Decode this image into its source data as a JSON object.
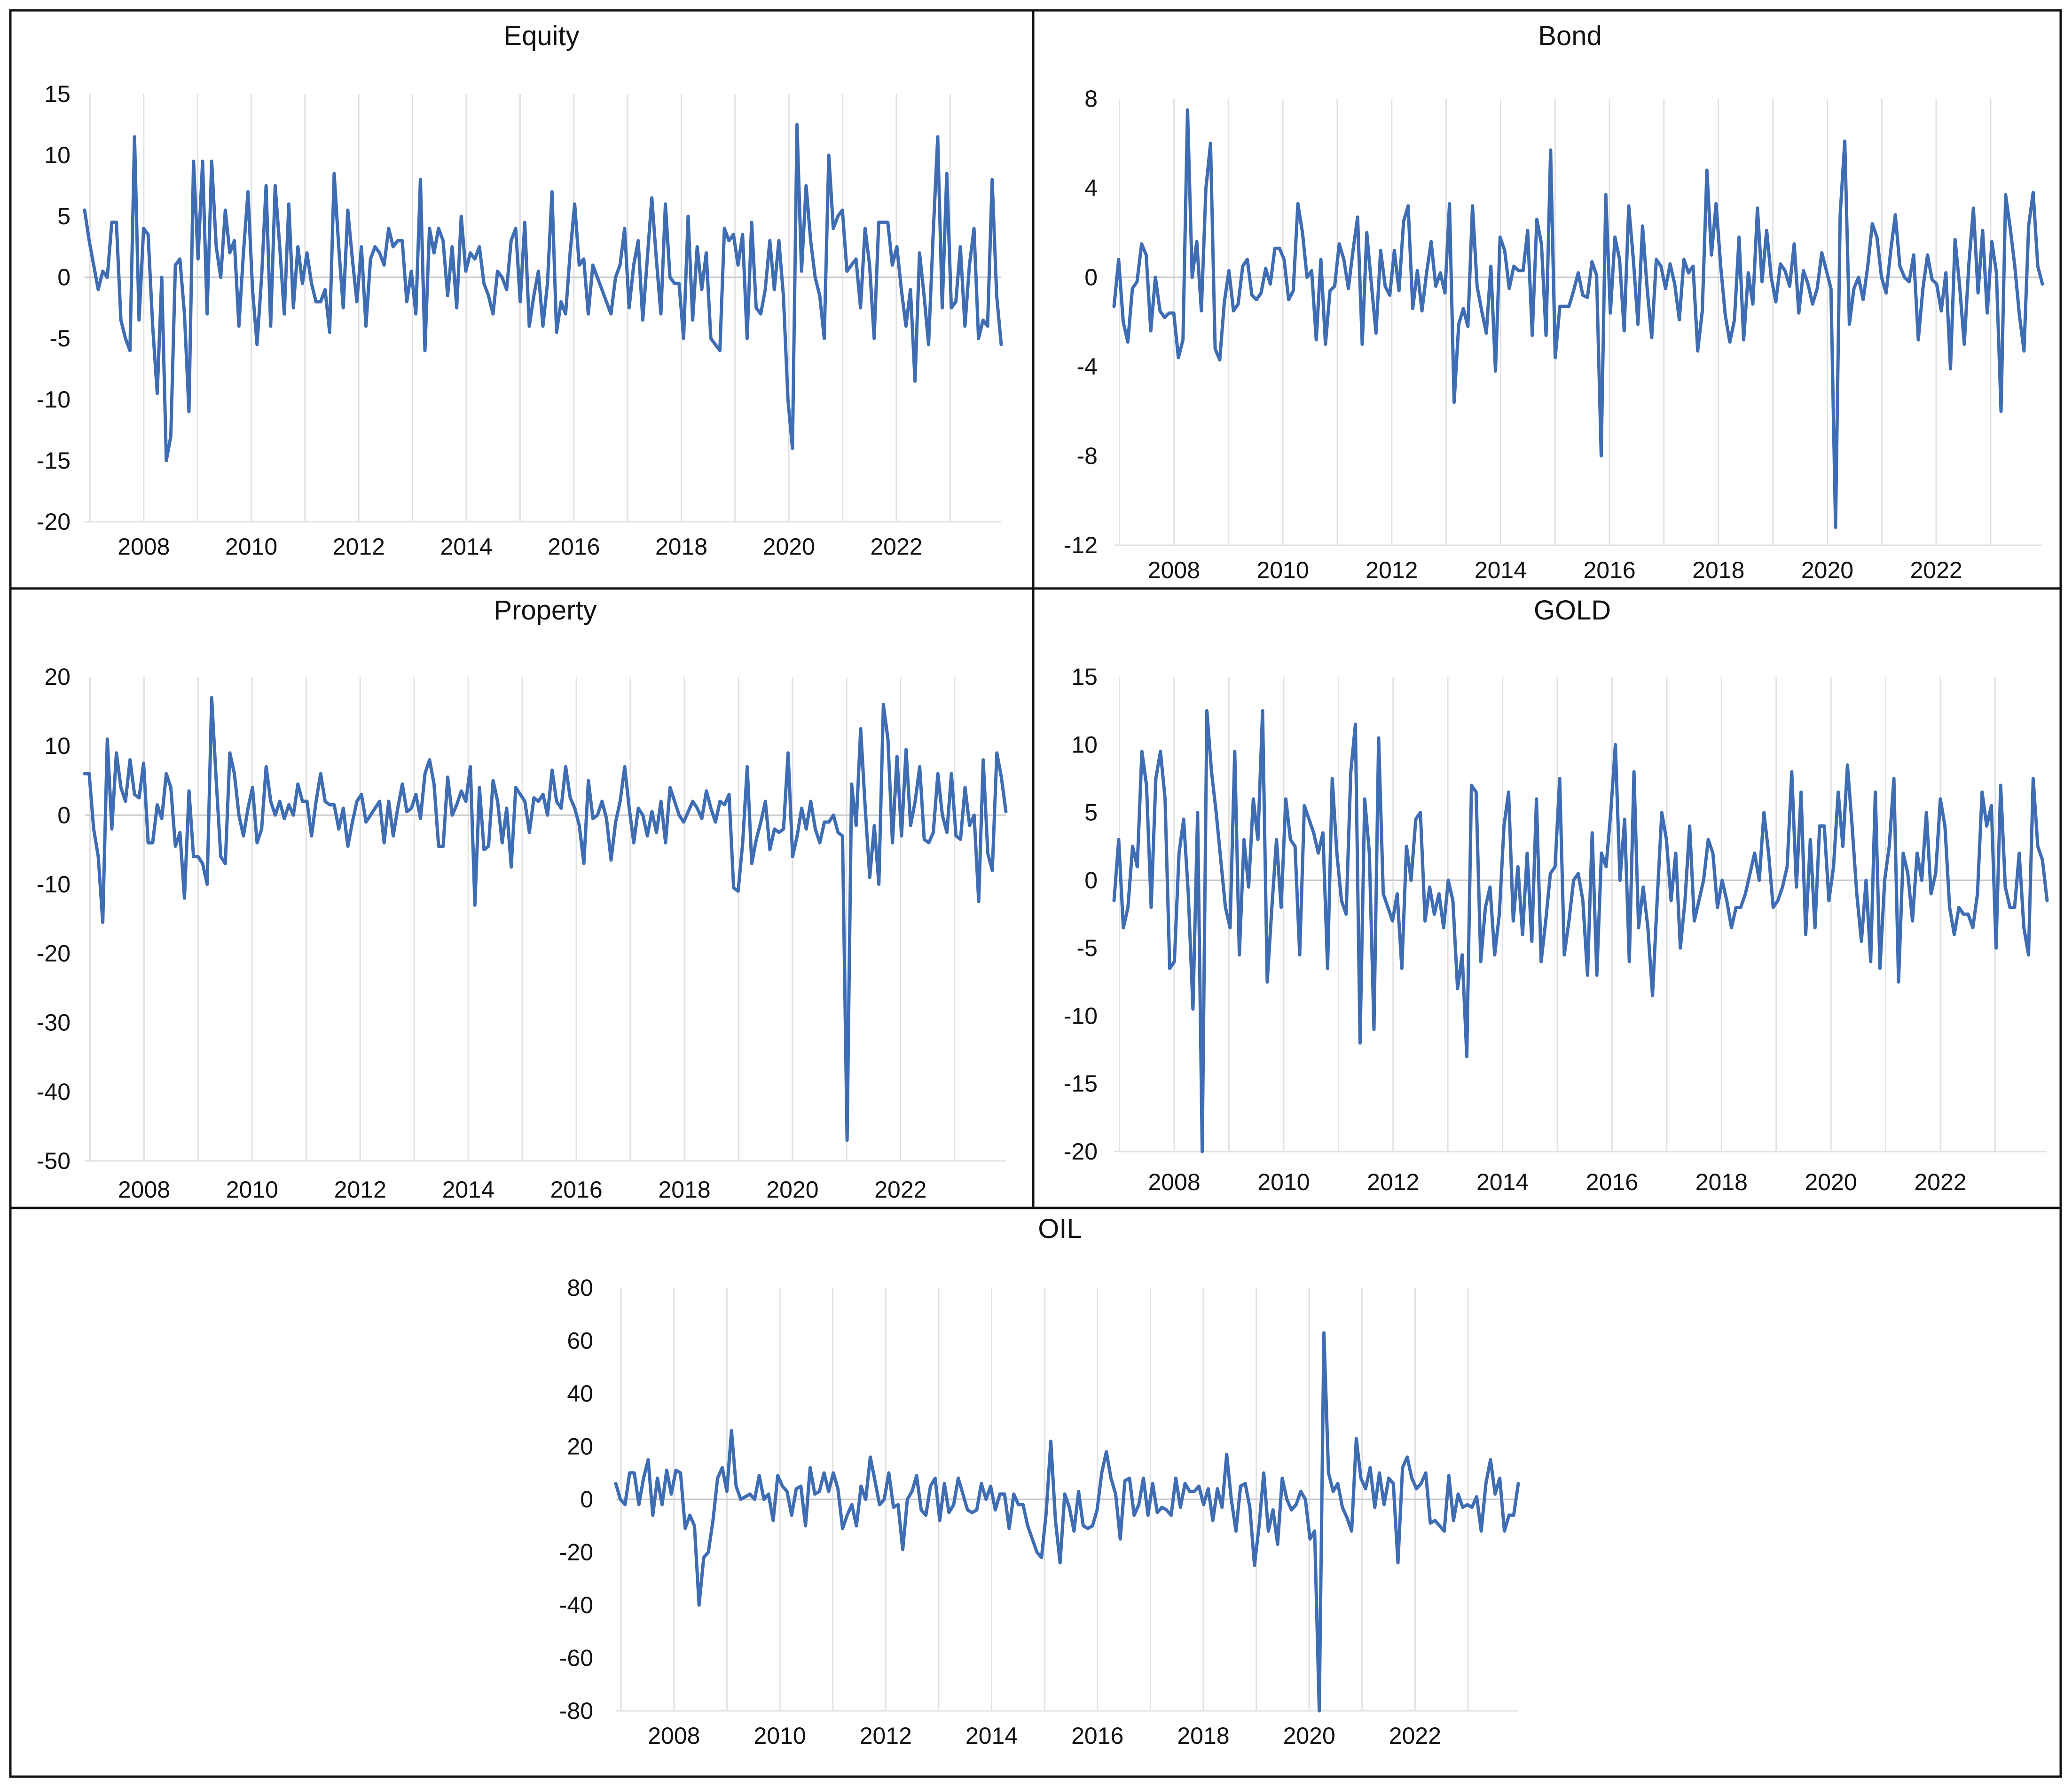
{
  "figure": {
    "line_color": "#3F6DB3",
    "border_color": "#111111"
  },
  "chart_data": [
    {
      "type": "line",
      "title": "Equity",
      "xlabel": "",
      "ylabel": "",
      "x_start": 2006.9,
      "x_end": 2023.95,
      "x_ticks": [
        "2008",
        "2010",
        "2012",
        "2014",
        "2016",
        "2018",
        "2020",
        "2022"
      ],
      "ylim": [
        -20,
        15
      ],
      "y_ticks": [
        15,
        10,
        5,
        0,
        -5,
        -10,
        -15,
        -20
      ],
      "grid": "vertical",
      "values": [
        5.5,
        3,
        1,
        -1,
        0.5,
        0,
        4.5,
        4.5,
        -3.5,
        -5,
        -6,
        11.5,
        -3.5,
        4,
        3.5,
        -4,
        -9.5,
        0,
        -15,
        -13,
        1,
        1.5,
        -3,
        -11,
        9.5,
        1.5,
        9.5,
        -3,
        9.5,
        2.5,
        0,
        5.5,
        2,
        3,
        -4,
        2,
        7,
        -1,
        -5.5,
        0,
        7.5,
        -4,
        7.5,
        2.5,
        -3,
        6,
        -2.5,
        2.5,
        -0.5,
        2,
        -0.5,
        -2,
        -2,
        -1,
        -4.5,
        8.5,
        2.5,
        -2.5,
        5.5,
        1.5,
        -2,
        2.5,
        -4,
        1.5,
        2.5,
        2,
        1,
        4,
        2.5,
        3,
        3,
        -2,
        0.5,
        -3,
        8,
        -6,
        4,
        2,
        4,
        3,
        -1.5,
        2.5,
        -2.5,
        5,
        0.5,
        2,
        1.5,
        2.5,
        -0.5,
        -1.5,
        -3,
        0.5,
        0,
        -1,
        3,
        4,
        -2,
        4.5,
        -4,
        -1.5,
        0.5,
        -4,
        -0.5,
        7,
        -4.5,
        -2,
        -3,
        2,
        6,
        1,
        1.5,
        -3,
        1,
        0,
        -1,
        -2,
        -3,
        0,
        1,
        4,
        -2.5,
        1,
        3,
        -3.5,
        1.5,
        6.5,
        1.5,
        -3,
        6,
        0,
        -0.5,
        -0.5,
        -5,
        5,
        -3.5,
        2.5,
        -1,
        2,
        -5,
        -5.5,
        -6,
        4,
        3,
        3.5,
        1,
        3.5,
        -5,
        4.5,
        -2.5,
        -3,
        -1,
        3,
        -1,
        3,
        -1.5,
        -10,
        -14,
        12.5,
        0.5,
        7.5,
        3,
        0,
        -1.5,
        -5,
        10,
        4,
        5,
        5.5,
        0.5,
        1,
        1.5,
        -2.5,
        4,
        1,
        -5,
        4.5,
        4.5,
        4.5,
        1,
        2.5,
        -1,
        -4,
        -1,
        -8.5,
        2,
        -1.5,
        -5.5,
        3.5,
        11.5,
        -2.5,
        8.5,
        -2.5,
        -2,
        2.5,
        -4,
        1,
        4,
        -5,
        -3.5,
        -4,
        8,
        -1.5,
        -5.5
      ]
    },
    {
      "type": "line",
      "title": "Bond",
      "xlabel": "",
      "ylabel": "",
      "x_start": 2006.9,
      "x_end": 2023.95,
      "x_ticks": [
        "2008",
        "2010",
        "2012",
        "2014",
        "2016",
        "2018",
        "2020",
        "2022"
      ],
      "ylim": [
        -12,
        8
      ],
      "y_ticks": [
        8,
        4,
        0,
        -4,
        -8,
        -12
      ],
      "grid": "vertical",
      "values": [
        -1.3,
        0.8,
        -2,
        -2.9,
        -0.5,
        -0.2,
        1.5,
        1,
        -2.4,
        0,
        -1.5,
        -1.8,
        -1.6,
        -1.6,
        -3.6,
        -2.8,
        7.5,
        0,
        1.6,
        -1.5,
        4,
        6,
        -3.2,
        -3.7,
        -1.1,
        0.3,
        -1.5,
        -1.2,
        0.5,
        0.8,
        -0.8,
        -1,
        -0.7,
        0.4,
        -0.3,
        1.3,
        1.3,
        0.8,
        -1,
        -0.6,
        3.3,
        2,
        0,
        0.3,
        -2.8,
        0.8,
        -3,
        -0.6,
        -0.4,
        1.5,
        0.8,
        -0.5,
        1.2,
        2.7,
        -3,
        2,
        -0.3,
        -2.5,
        1.2,
        -0.4,
        -0.8,
        1.2,
        -0.6,
        2.5,
        3.2,
        -1.4,
        0.3,
        -1.5,
        0.2,
        1.6,
        -0.4,
        0.2,
        -0.7,
        3.3,
        -5.6,
        -2.1,
        -1.4,
        -2.2,
        3.2,
        -0.4,
        -1.5,
        -2.5,
        0.5,
        -4.2,
        1.8,
        1.2,
        -0.5,
        0.5,
        0.3,
        0.3,
        2.1,
        -2.6,
        2.6,
        1.5,
        -2.6,
        5.7,
        -3.6,
        -1.3,
        -1.3,
        -1.3,
        -0.6,
        0.2,
        -0.8,
        -0.9,
        0.7,
        0.1,
        -8,
        3.7,
        -1.6,
        1.8,
        0.8,
        -2.4,
        3.2,
        0.8,
        -2.1,
        2.3,
        -0.5,
        -2.7,
        0.8,
        0.5,
        -0.5,
        0.6,
        -0.3,
        -1.9,
        0.8,
        0.2,
        0.5,
        -3.3,
        -1.5,
        4.8,
        1,
        3.3,
        0.5,
        -1.7,
        -2.9,
        -1.9,
        1.8,
        -2.8,
        0.2,
        -1.2,
        3.1,
        -0.2,
        2.1,
        0,
        -1.1,
        0.6,
        0.3,
        -0.4,
        1.5,
        -1.6,
        0.3,
        -0.3,
        -1.2,
        -0.5,
        1.1,
        0.3,
        -0.5,
        -11.2,
        2.8,
        6.1,
        -2.1,
        -0.5,
        0,
        -1,
        0.5,
        2.4,
        1.8,
        0,
        -0.7,
        1.2,
        2.8,
        0.5,
        0,
        -0.2,
        1,
        -2.8,
        -0.5,
        1,
        -0.1,
        -0.3,
        -1.5,
        0.2,
        -4.1,
        1.7,
        -0.4,
        -3,
        0.6,
        3.1,
        -0.7,
        2.1,
        -1.6,
        1.6,
        0.2,
        -6,
        3.7,
        2.2,
        0.5,
        -1.7,
        -3.3,
        2.3,
        3.8,
        0.5,
        -0.3
      ]
    },
    {
      "type": "line",
      "title": "Property",
      "xlabel": "",
      "ylabel": "",
      "x_start": 2006.9,
      "x_end": 2023.95,
      "x_ticks": [
        "2008",
        "2010",
        "2012",
        "2014",
        "2016",
        "2018",
        "2020",
        "2022"
      ],
      "ylim": [
        -50,
        20
      ],
      "y_ticks": [
        20,
        10,
        0,
        -10,
        -20,
        -30,
        -40,
        -50
      ],
      "grid": "vertical",
      "values": [
        6,
        6,
        -2,
        -6,
        -15.5,
        11,
        -2,
        9,
        4,
        2,
        8,
        3,
        2.5,
        7.5,
        -4,
        -4,
        1.5,
        -0.5,
        6,
        4,
        -4.5,
        -2.5,
        -12,
        3.5,
        -6,
        -6,
        -7,
        -10,
        17,
        5,
        -6,
        -7,
        9,
        6,
        0,
        -3,
        1,
        4,
        -4,
        -2,
        7,
        2,
        0,
        2,
        -0.5,
        1.5,
        0,
        4.5,
        2,
        2,
        -3,
        2,
        6,
        2,
        1.5,
        1.5,
        -2,
        1,
        -4.5,
        -1,
        2,
        3,
        -1,
        0,
        1,
        2,
        -4,
        2,
        -3,
        1,
        4.5,
        0.5,
        1,
        3,
        -0.5,
        6,
        8,
        4.5,
        -4.5,
        -4.5,
        5.5,
        0,
        1.5,
        3.5,
        2,
        7,
        -13,
        4,
        -5,
        -4.5,
        5,
        2,
        -4,
        1,
        -7.5,
        4,
        3,
        2,
        -2.5,
        2.5,
        2,
        3,
        0,
        6.5,
        2,
        1,
        7,
        2.5,
        1,
        -1.5,
        -7,
        5,
        -0.5,
        0,
        2,
        -0.5,
        -6.5,
        -1,
        2,
        7,
        1,
        -4,
        1,
        0,
        -3,
        0.5,
        -2.5,
        2,
        -4,
        4,
        2,
        0,
        -1,
        0.5,
        2,
        1,
        -0.5,
        3.5,
        1,
        -1,
        2,
        1.5,
        3,
        -10.5,
        -11,
        -4,
        7,
        -7,
        -3.5,
        -1,
        2,
        -5,
        -2,
        -2.5,
        -2,
        9,
        -6,
        -3,
        1,
        -2,
        2,
        -2,
        -4,
        -1,
        -1,
        0,
        -2.5,
        -3,
        -47,
        4.5,
        -1.5,
        12.5,
        1,
        -9,
        -1.5,
        -10,
        16,
        11,
        -4,
        8.5,
        -3,
        9.5,
        -1.5,
        2,
        7,
        -3.5,
        -4,
        -2.5,
        6,
        0,
        -2.5,
        6,
        -3,
        -3.5,
        4,
        -1.5,
        0,
        -12.5,
        8,
        -5.5,
        -8,
        9,
        5.5,
        0.5
      ]
    },
    {
      "type": "line",
      "title": "GOLD",
      "xlabel": "",
      "ylabel": "",
      "x_start": 2006.9,
      "x_end": 2023.95,
      "x_ticks": [
        "2008",
        "2010",
        "2012",
        "2014",
        "2016",
        "2018",
        "2020",
        "2022"
      ],
      "ylim": [
        -20,
        15
      ],
      "y_ticks": [
        15,
        10,
        5,
        0,
        -5,
        -10,
        -15,
        -20
      ],
      "grid": "vertical",
      "values": [
        -1.5,
        3,
        -3.5,
        -2,
        2.5,
        1,
        9.5,
        7,
        -2,
        7.5,
        9.5,
        6,
        -6.5,
        -6,
        2,
        4.5,
        -1,
        -9.5,
        5,
        -20,
        12.5,
        8,
        5,
        1.5,
        -2,
        -3.5,
        9.5,
        -5.5,
        3,
        -0.5,
        6,
        3,
        12.5,
        -7.5,
        -2,
        3,
        -2,
        6,
        3,
        2.5,
        -5.5,
        5.5,
        4.5,
        3.5,
        2,
        3.5,
        -6.5,
        7.5,
        2,
        -1.5,
        -2.5,
        8,
        11.5,
        -12,
        6,
        2,
        -11,
        10.5,
        -1,
        -2,
        -3,
        -1,
        -6.5,
        2.5,
        0,
        4.5,
        5,
        -3,
        -0.5,
        -2.5,
        -1,
        -3.5,
        0,
        -1.5,
        -8,
        -5.5,
        -13,
        7,
        6.5,
        -6,
        -2,
        -0.5,
        -5.5,
        -2.5,
        4,
        6.5,
        -3,
        1,
        -4,
        2,
        -4.5,
        6,
        -6,
        -3,
        0.5,
        1,
        7.5,
        -5.5,
        -3,
        0,
        0.5,
        -1.5,
        -7,
        3.5,
        -7,
        2,
        1,
        5,
        10,
        0,
        4.5,
        -6,
        8,
        -3.5,
        -0.5,
        -3.5,
        -8.5,
        -1.5,
        5,
        3,
        -1.5,
        2,
        -5,
        -1.5,
        4,
        -3,
        -1.5,
        0,
        3,
        2,
        -2,
        0,
        -1.5,
        -3.5,
        -2,
        -2,
        -1,
        0.5,
        2,
        0,
        5,
        2,
        -2,
        -1.5,
        -0.5,
        1,
        8,
        -0.5,
        6.5,
        -4,
        3,
        -3.5,
        4,
        4,
        -1.5,
        1,
        6.5,
        2.5,
        8.5,
        4,
        -1,
        -4.5,
        0,
        -6,
        6.5,
        -6.5,
        0,
        2.5,
        7.5,
        -7.5,
        2,
        0.5,
        -3,
        2,
        0,
        5,
        -1,
        0.5,
        6,
        4,
        -2,
        -4,
        -2,
        -2.5,
        -2.5,
        -3.5,
        -1,
        6.5,
        4,
        5.5,
        -5,
        7,
        -0.5,
        -2,
        -2,
        2,
        -3.5,
        -5.5,
        7.5,
        2.5,
        1.5,
        -1.5
      ]
    },
    {
      "type": "line",
      "title": "OIL",
      "xlabel": "",
      "ylabel": "",
      "x_start": 2006.9,
      "x_end": 2023.95,
      "x_ticks": [
        "2008",
        "2010",
        "2012",
        "2014",
        "2016",
        "2018",
        "2020",
        "2022"
      ],
      "ylim": [
        -80,
        80
      ],
      "y_ticks": [
        80,
        60,
        40,
        20,
        0,
        -20,
        -40,
        -60,
        -80
      ],
      "grid": "vertical",
      "values": [
        6,
        0,
        -2,
        10,
        10,
        -2,
        8,
        15,
        -6,
        8,
        -2,
        11,
        2,
        11,
        10,
        -11,
        -6,
        -10,
        -40,
        -22,
        -20,
        -8,
        8,
        12,
        3,
        26,
        5,
        0,
        1,
        2,
        0,
        9,
        0,
        2,
        -8,
        9,
        5,
        3,
        -6,
        4,
        5,
        -10,
        12,
        2,
        3,
        10,
        3,
        10,
        4,
        -11,
        -6,
        -2,
        -10,
        5,
        0,
        16,
        7,
        -2,
        0,
        10,
        -3,
        -2,
        -19,
        0,
        3,
        9,
        -4,
        -6,
        5,
        8,
        -8,
        6,
        -5,
        -2,
        8,
        2,
        -4,
        -5,
        -4,
        6,
        0,
        5,
        -4,
        2,
        2,
        -11,
        2,
        -2,
        -2,
        -10,
        -15,
        -20,
        -22,
        -5,
        22,
        -8,
        -24,
        2,
        -3,
        -12,
        3,
        -10,
        -11,
        -10,
        -4,
        10,
        18,
        8,
        2,
        -15,
        7,
        8,
        -6,
        -2,
        8,
        -6,
        6,
        -5,
        -3,
        -4,
        -6,
        8,
        -3,
        6,
        3,
        3,
        5,
        -2,
        4,
        -8,
        4,
        -3,
        17,
        0,
        -12,
        5,
        6,
        -3,
        -25,
        -10,
        10,
        -12,
        -4,
        -17,
        8,
        0,
        -4,
        -2,
        3,
        0,
        -15,
        -12,
        -80,
        63,
        10,
        3,
        6,
        -3,
        -7,
        -12,
        23,
        8,
        4,
        12,
        -3,
        10,
        -2,
        8,
        6,
        -24,
        12,
        16,
        8,
        4,
        6,
        10,
        -9,
        -8,
        -10,
        -12,
        9,
        -8,
        2,
        -3,
        -2,
        -3,
        1,
        -12,
        6,
        15,
        2,
        8,
        -12,
        -6,
        -6,
        6
      ]
    }
  ]
}
